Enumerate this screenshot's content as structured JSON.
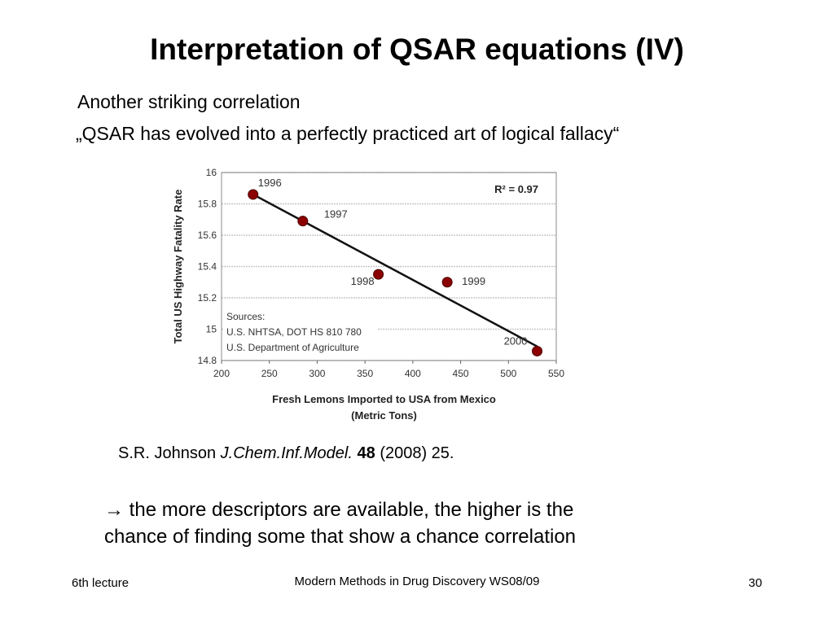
{
  "slide": {
    "title": "Interpretation of QSAR equations (IV)",
    "subtitle1": "Another striking correlation",
    "subtitle2": "„QSAR has evolved into a perfectly practiced art of logical fallacy“",
    "citation": {
      "authors": "S.R. Johnson",
      "journal": "J.Chem.Inf.Model.",
      "volume": "48",
      "rest": "(2008) 25."
    },
    "conclusion": {
      "arrow": "→",
      "line1": "the more descriptors are available, the higher is the",
      "line2": "chance of finding some that show a chance correlation"
    },
    "footer": {
      "left": "6th lecture",
      "center": "Modern Methods in Drug Discovery WS08/09",
      "right": "30"
    }
  },
  "chart_data": {
    "type": "scatter",
    "xlabel_line1": "Fresh Lemons Imported to USA from Mexico",
    "xlabel_line2": "(Metric Tons)",
    "ylabel": "Total US Highway Fatality Rate",
    "xlim": [
      200,
      550
    ],
    "ylim": [
      14.8,
      16
    ],
    "x_ticks": [
      "200",
      "250",
      "300",
      "350",
      "400",
      "450",
      "500",
      "550"
    ],
    "y_ticks": [
      "14.8",
      "15",
      "15.2",
      "15.4",
      "15.6",
      "15.8",
      "16"
    ],
    "points": [
      {
        "x": 233,
        "y": 15.86,
        "label": "1996"
      },
      {
        "x": 285,
        "y": 15.69,
        "label": "1997"
      },
      {
        "x": 364,
        "y": 15.35,
        "label": "1998"
      },
      {
        "x": 436,
        "y": 15.3,
        "label": "1999"
      },
      {
        "x": 530,
        "y": 14.86,
        "label": "2000"
      }
    ],
    "trendline": {
      "x1": 233,
      "y1": 15.86,
      "x2": 530,
      "y2": 14.89
    },
    "r2_label": "R² = 0.97",
    "sources": [
      "Sources:",
      "U.S. NHTSA, DOT HS 810 780",
      "U.S. Department of Agriculture"
    ],
    "grid": true,
    "marker_color": "#8b0000",
    "line_color": "#111111"
  }
}
